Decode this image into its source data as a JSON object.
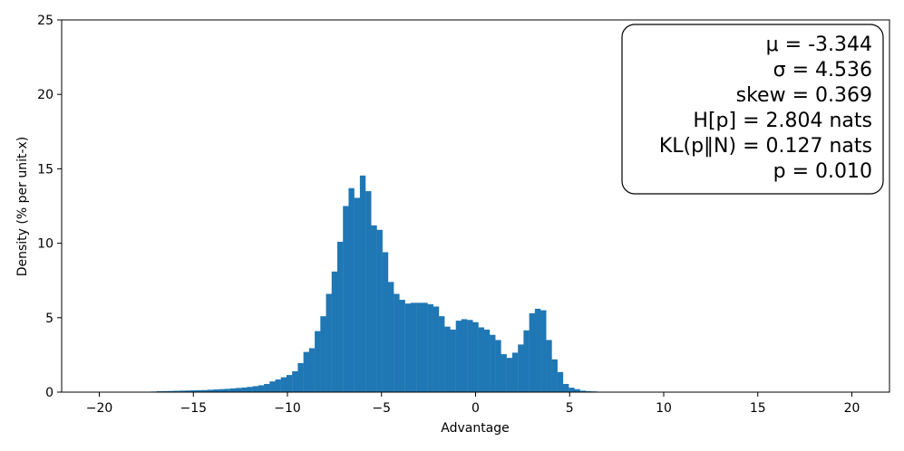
{
  "chart_data": {
    "type": "bar",
    "xlabel": "Advantage",
    "ylabel": "Density (% per unit-x)",
    "xlim": [
      -22,
      22
    ],
    "ylim": [
      0,
      25
    ],
    "x_ticks": [
      "−20",
      "−15",
      "−10",
      "−5",
      "0",
      "5",
      "10",
      "15",
      "20"
    ],
    "x_tick_values": [
      -20,
      -15,
      -10,
      -5,
      0,
      5,
      10,
      15,
      20
    ],
    "y_ticks": [
      "0",
      "5",
      "10",
      "15",
      "20",
      "25"
    ],
    "y_tick_values": [
      0,
      5,
      10,
      15,
      20,
      25
    ],
    "bar_color": "#1f77b4",
    "legend_position": "top-right",
    "stats_box": [
      "μ = -3.344",
      "σ = 4.536",
      "skew = 0.369",
      "H[p] = 2.804 nats",
      "KL(p‖N) = 0.127 nats",
      "p = 0.010"
    ],
    "bin_width": 0.3,
    "bins": [
      [
        -19.8,
        0.01
      ],
      [
        -19.5,
        0.01
      ],
      [
        -19.2,
        0.01
      ],
      [
        -18.9,
        0.01
      ],
      [
        -18.6,
        0.01
      ],
      [
        -18.3,
        0.02
      ],
      [
        -18.0,
        0.02
      ],
      [
        -17.7,
        0.03
      ],
      [
        -17.4,
        0.03
      ],
      [
        -17.1,
        0.04
      ],
      [
        -16.8,
        0.06
      ],
      [
        -16.5,
        0.07
      ],
      [
        -16.2,
        0.08
      ],
      [
        -15.9,
        0.09
      ],
      [
        -15.6,
        0.1
      ],
      [
        -15.3,
        0.11
      ],
      [
        -15.0,
        0.12
      ],
      [
        -14.7,
        0.13
      ],
      [
        -14.4,
        0.14
      ],
      [
        -14.1,
        0.16
      ],
      [
        -13.8,
        0.18
      ],
      [
        -13.5,
        0.2
      ],
      [
        -13.2,
        0.22
      ],
      [
        -12.9,
        0.25
      ],
      [
        -12.6,
        0.28
      ],
      [
        -12.3,
        0.31
      ],
      [
        -12.0,
        0.35
      ],
      [
        -11.7,
        0.4
      ],
      [
        -11.4,
        0.46
      ],
      [
        -11.1,
        0.55
      ],
      [
        -10.8,
        0.72
      ],
      [
        -10.5,
        0.85
      ],
      [
        -10.2,
        1.0
      ],
      [
        -9.9,
        1.15
      ],
      [
        -9.6,
        1.4
      ],
      [
        -9.3,
        1.95
      ],
      [
        -9.0,
        2.7
      ],
      [
        -8.7,
        2.95
      ],
      [
        -8.4,
        4.1
      ],
      [
        -8.1,
        5.1
      ],
      [
        -7.8,
        6.6
      ],
      [
        -7.5,
        8.1
      ],
      [
        -7.2,
        10.1
      ],
      [
        -6.9,
        12.5
      ],
      [
        -6.6,
        13.7
      ],
      [
        -6.3,
        13.05
      ],
      [
        -6.0,
        14.55
      ],
      [
        -5.7,
        13.5
      ],
      [
        -5.4,
        11.2
      ],
      [
        -5.1,
        10.9
      ],
      [
        -4.8,
        9.4
      ],
      [
        -4.5,
        7.4
      ],
      [
        -4.2,
        6.6
      ],
      [
        -3.9,
        6.2
      ],
      [
        -3.6,
        5.95
      ],
      [
        -3.3,
        6.0
      ],
      [
        -3.0,
        6.0
      ],
      [
        -2.7,
        6.0
      ],
      [
        -2.4,
        5.9
      ],
      [
        -2.1,
        5.75
      ],
      [
        -1.8,
        5.1
      ],
      [
        -1.5,
        4.4
      ],
      [
        -1.2,
        4.2
      ],
      [
        -0.9,
        4.8
      ],
      [
        -0.6,
        4.9
      ],
      [
        -0.3,
        4.85
      ],
      [
        0.0,
        4.7
      ],
      [
        0.3,
        4.35
      ],
      [
        0.6,
        4.2
      ],
      [
        0.9,
        3.85
      ],
      [
        1.2,
        3.5
      ],
      [
        1.5,
        2.55
      ],
      [
        1.8,
        2.3
      ],
      [
        2.1,
        2.65
      ],
      [
        2.4,
        3.2
      ],
      [
        2.7,
        4.15
      ],
      [
        3.0,
        5.3
      ],
      [
        3.3,
        5.6
      ],
      [
        3.6,
        5.5
      ],
      [
        3.9,
        3.5
      ],
      [
        4.2,
        2.2
      ],
      [
        4.5,
        1.35
      ],
      [
        4.8,
        0.55
      ],
      [
        5.1,
        0.3
      ],
      [
        5.4,
        0.2
      ],
      [
        5.7,
        0.1
      ],
      [
        6.0,
        0.07
      ],
      [
        6.3,
        0.05
      ],
      [
        6.6,
        0.03
      ],
      [
        6.9,
        0.02
      ],
      [
        7.2,
        0.02
      ]
    ]
  }
}
